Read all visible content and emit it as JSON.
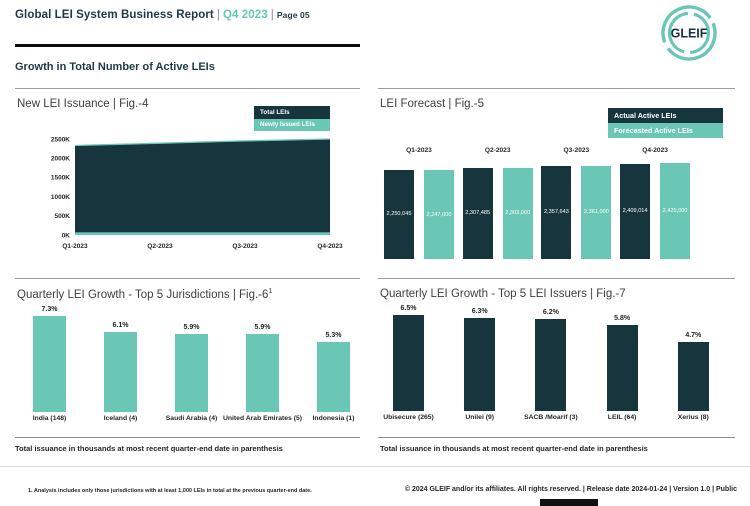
{
  "header": {
    "title": "Global LEI System Business Report",
    "separator": "|",
    "period": "Q4 2023",
    "page": "Page 05",
    "logo_text": "GLEIF"
  },
  "section": {
    "heading": "Growth in Total Number of Active LEIs"
  },
  "colors": {
    "dark": "#17353c",
    "teal": "#6ac7b5",
    "heading": "#1d3a44",
    "label": "#262626"
  },
  "panels": {
    "fig4": {
      "title": "New LEI Issuance | Fig.-4",
      "legend": [
        "Total LEIs",
        "Newly Issued LEIs"
      ]
    },
    "fig5": {
      "title": "LEI Forecast | Fig.-5",
      "legend": [
        "Actual Active LEIs",
        "Forecasted Active LEIs"
      ]
    },
    "fig6": {
      "title": "Quarterly LEI Growth - Top 5 Jurisdictions | Fig.-6",
      "title_superscript": "1"
    },
    "fig7": {
      "title": "Quarterly LEI Growth - Top 5 LEI Issuers | Fig.-7"
    }
  },
  "footnotes": {
    "left_note": "Total issuance in thousands at most recent quarter-end date in parenthesis",
    "right_note": "Total issuance in thousands at most recent quarter-end date in parenthesis",
    "analysis_note": "1. Analysis includes only those jurisdictions with at least 1,000 LEIs in total at the previous quarter-end date.",
    "copyright": "© 2024 GLEIF and/or its affiliates. All rights reserved. | Release date 2024-01-24 | Version 1.0 | Public"
  },
  "chart_data": [
    {
      "id": "fig4",
      "type": "area",
      "title": "New LEI Issuance",
      "x": [
        "Q1-2023",
        "Q2-2023",
        "Q3-2023",
        "Q4-2023"
      ],
      "series": [
        {
          "name": "Total LEIs",
          "color": "#17353c",
          "values_k": [
            2330,
            2390,
            2450,
            2500
          ]
        },
        {
          "name": "Newly Issued LEIs",
          "color": "#6ac7b5",
          "values_k": [
            70,
            70,
            70,
            70
          ]
        }
      ],
      "ylabels": [
        "0K",
        "500K",
        "1000K",
        "1500K",
        "2000K",
        "2500K"
      ],
      "ylim_k": [
        0,
        2500
      ],
      "legend_position": "top-right",
      "grid": false
    },
    {
      "id": "fig5",
      "type": "bar",
      "title": "LEI Forecast",
      "categories": [
        "Q1-2023",
        "Q2-2023",
        "Q3-2023",
        "Q4-2023"
      ],
      "series": [
        {
          "name": "Actual Active LEIs",
          "color": "#17353c",
          "values": [
            2250045,
            2307485,
            2357643,
            2409014
          ],
          "labels": [
            "2,250,045",
            "2,307,485",
            "2,357,643",
            "2,409,014"
          ]
        },
        {
          "name": "Forecasted Active LEIs",
          "color": "#6ac7b5",
          "values": [
            2247000,
            2302000,
            2361000,
            2425000
          ],
          "labels": [
            "2,247,000",
            "2,302,000",
            "2,361,000",
            "2,425,000"
          ]
        }
      ],
      "ylim": [
        0,
        2425000
      ],
      "legend_position": "top-right",
      "grid": false
    },
    {
      "id": "fig6",
      "type": "bar",
      "title": "Quarterly LEI Growth - Top 5 Jurisdictions",
      "categories": [
        "India (148)",
        "Iceland (4)",
        "Saudi Arabia (4)",
        "United Arab Emirates (5)",
        "Indonesia (1)"
      ],
      "values": [
        7.3,
        6.1,
        5.9,
        5.9,
        5.3
      ],
      "labels": [
        "7.3%",
        "6.1%",
        "5.9%",
        "5.9%",
        "5.3%"
      ],
      "bar_color": "#6ac7b5",
      "ylim": [
        0,
        7.3
      ],
      "grid": false
    },
    {
      "id": "fig7",
      "type": "bar",
      "title": "Quarterly LEI Growth - Top 5 LEI Issuers",
      "categories": [
        "Ubisecure (265)",
        "Unilei (9)",
        "SACB /Moarif (3)",
        "LEIL (64)",
        "Xerius (8)"
      ],
      "values": [
        6.5,
        6.3,
        6.2,
        5.8,
        4.7
      ],
      "labels": [
        "6.5%",
        "6.3%",
        "6.2%",
        "5.8%",
        "4.7%"
      ],
      "bar_color": "#17353c",
      "ylim": [
        0,
        6.5
      ],
      "grid": false
    }
  ]
}
